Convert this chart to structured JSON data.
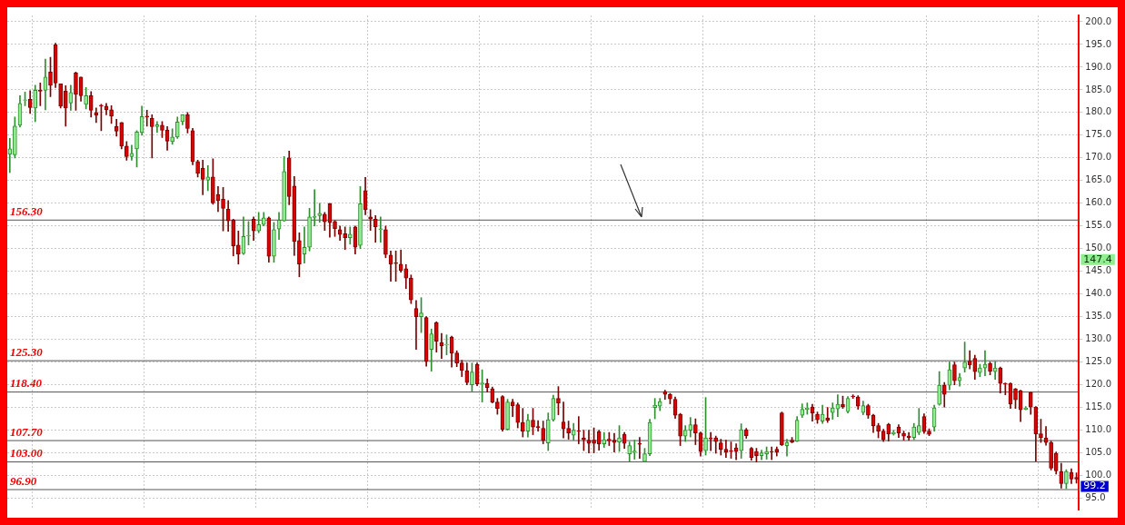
{
  "chart_data": {
    "type": "candlestick",
    "categories": [
      null,
      null,
      null,
      null,
      null,
      null,
      null,
      null,
      null,
      null,
      null,
      null,
      null,
      null,
      null,
      null,
      null,
      null,
      null,
      null,
      null,
      null,
      null,
      null,
      null,
      null,
      null,
      null,
      null,
      null,
      null,
      null,
      null,
      null,
      null,
      null,
      null,
      null,
      null,
      null,
      null,
      null,
      null,
      null,
      null,
      null,
      null,
      null,
      null,
      null,
      null,
      null,
      null,
      null,
      null,
      null,
      null,
      null,
      null,
      null,
      null,
      null,
      null,
      null,
      null,
      null,
      null,
      null,
      null,
      null,
      null,
      null,
      null,
      null,
      null,
      null,
      null,
      null,
      null,
      null,
      null,
      null,
      null,
      null,
      null,
      null,
      null,
      null,
      null,
      null,
      null,
      null,
      null,
      null,
      null,
      null,
      null,
      null,
      null,
      null,
      null,
      null,
      null,
      null,
      null,
      null,
      null,
      null,
      null,
      null,
      null,
      null,
      null,
      null,
      null,
      null,
      null,
      null,
      null,
      null,
      null,
      null,
      null,
      null,
      null,
      null,
      null,
      null,
      null,
      null,
      null,
      null,
      null,
      null,
      null,
      null,
      null,
      null,
      null,
      null,
      null,
      null,
      null,
      null,
      null,
      null,
      null,
      null,
      null,
      null,
      null,
      null,
      null,
      null,
      null,
      null,
      null,
      null,
      null,
      null,
      null,
      null,
      null,
      null,
      null,
      null,
      null,
      null,
      null,
      null,
      null,
      null,
      null,
      null,
      null,
      null,
      null,
      null,
      null,
      null,
      null,
      null,
      null,
      null,
      null,
      null,
      null,
      null,
      null,
      null,
      null,
      null,
      null,
      null,
      null,
      null,
      null,
      null,
      null,
      null,
      null,
      null,
      null,
      null,
      null,
      null,
      null,
      null,
      null,
      null,
      null
    ],
    "ohlc": [
      [
        170.8,
        174.3,
        166.8,
        172
      ],
      [
        170.7,
        179,
        170,
        177
      ],
      [
        177.2,
        183.7,
        176.8,
        182
      ],
      [
        182.7,
        184.5,
        181.5,
        182.8
      ],
      [
        182.9,
        184.8,
        179.8,
        181.1
      ],
      [
        181,
        186,
        178,
        184.9
      ],
      [
        184.9,
        186.5,
        181.5,
        184.7
      ],
      [
        184.9,
        191.8,
        180.6,
        187.8
      ],
      [
        188.9,
        192.2,
        183.5,
        186
      ],
      [
        195,
        195.3,
        185.5,
        186.5
      ],
      [
        186.3,
        186.3,
        181,
        181.4
      ],
      [
        184.7,
        185.9,
        177,
        181
      ],
      [
        182.1,
        186,
        180.5,
        184.4
      ],
      [
        188.7,
        188.9,
        180.5,
        184
      ],
      [
        187.8,
        187.8,
        182.5,
        183.7
      ],
      [
        181.8,
        185.5,
        180.8,
        183.7
      ],
      [
        183.7,
        184.6,
        179,
        180.5
      ],
      [
        180,
        181,
        177.8,
        179.4
      ],
      [
        181.6,
        181.8,
        176,
        181.4
      ],
      [
        181.4,
        182,
        179.5,
        180.6
      ],
      [
        180.6,
        181.5,
        177.6,
        179.2
      ],
      [
        176.9,
        178.5,
        174.8,
        175.9
      ],
      [
        177.8,
        177.8,
        172,
        172.6
      ],
      [
        172.6,
        173.6,
        169.5,
        170.3
      ],
      [
        170.3,
        172.8,
        169.5,
        171
      ],
      [
        172,
        176,
        168,
        175.7
      ],
      [
        175.6,
        181.4,
        175,
        179.1
      ],
      [
        179.2,
        180.5,
        177,
        179
      ],
      [
        178.7,
        179.5,
        170,
        176.9
      ],
      [
        176.9,
        178,
        175.6,
        177.3
      ],
      [
        177.2,
        178,
        174.5,
        176.1
      ],
      [
        176.1,
        176.9,
        171.7,
        173.7
      ],
      [
        173.6,
        176.4,
        173,
        174.6
      ],
      [
        174.6,
        179,
        174.3,
        177.9
      ],
      [
        178,
        179.5,
        177.3,
        179.5
      ],
      [
        179.5,
        180,
        175.5,
        176.5
      ],
      [
        176,
        176.5,
        168.5,
        169.2
      ],
      [
        169.2,
        169.5,
        165.8,
        166.6
      ],
      [
        167.7,
        169.5,
        161.9,
        165.3
      ],
      [
        165.1,
        168.3,
        162.8,
        165.8
      ],
      [
        165.8,
        169.8,
        159.8,
        160.1
      ],
      [
        161.9,
        163.7,
        158.2,
        160.6
      ],
      [
        160.9,
        163.5,
        153.9,
        158.9
      ],
      [
        158.7,
        160.6,
        153.8,
        156.1
      ],
      [
        156.3,
        156.5,
        148.4,
        150.6
      ],
      [
        150.8,
        153.9,
        146.6,
        148.8
      ],
      [
        148.9,
        157,
        148.7,
        152.7
      ],
      [
        152.8,
        156,
        150.8,
        152.9
      ],
      [
        156.5,
        157,
        151.8,
        153.9
      ],
      [
        153.9,
        158,
        153.5,
        155.3
      ],
      [
        155.3,
        158,
        155,
        156.8
      ],
      [
        156.8,
        157,
        147,
        148.3
      ],
      [
        148.3,
        155.8,
        147,
        154.2
      ],
      [
        154.3,
        158,
        152,
        156.3
      ],
      [
        156.1,
        170.3,
        156,
        167
      ],
      [
        170,
        171.5,
        159.7,
        161.5
      ],
      [
        163.8,
        165.9,
        148.5,
        151.6
      ],
      [
        151.8,
        153.5,
        143.8,
        146.6
      ],
      [
        148.8,
        154.8,
        146.8,
        150.3
      ],
      [
        150.3,
        158.9,
        149.5,
        157
      ],
      [
        156.9,
        163,
        155,
        157.1
      ],
      [
        157.3,
        160,
        155.8,
        157.8
      ],
      [
        157.6,
        158,
        154,
        155.9
      ],
      [
        159.9,
        160,
        152.5,
        155.7
      ],
      [
        156,
        156.2,
        152.7,
        154.4
      ],
      [
        154.2,
        155,
        151.8,
        153.1
      ],
      [
        153.3,
        154.8,
        149.8,
        152.4
      ],
      [
        152.4,
        154.8,
        151,
        153.2
      ],
      [
        154.8,
        155,
        148.8,
        150.3
      ],
      [
        150.7,
        163.7,
        150,
        159.9
      ],
      [
        162.8,
        165.7,
        157.5,
        158.6
      ],
      [
        157,
        158.6,
        154,
        156.5
      ],
      [
        156.5,
        157.3,
        151.4,
        154.8
      ],
      [
        154.2,
        157,
        151.4,
        154.4
      ],
      [
        154.2,
        155,
        148,
        148.7
      ],
      [
        148.6,
        149.5,
        142.8,
        146.6
      ],
      [
        146.9,
        149.5,
        142.8,
        146.7
      ],
      [
        146.6,
        149.7,
        144.8,
        145.2
      ],
      [
        145.6,
        146.5,
        141.2,
        143.5
      ],
      [
        143.5,
        144.2,
        137.9,
        138.7
      ],
      [
        136.8,
        138.6,
        127.8,
        135
      ],
      [
        135,
        139.2,
        131.5,
        135.8
      ],
      [
        134.8,
        135,
        124.1,
        125.1
      ],
      [
        127.8,
        132.3,
        123,
        131.2
      ],
      [
        133.7,
        133.9,
        127.2,
        129.6
      ],
      [
        129.3,
        131.3,
        125.8,
        128.6
      ],
      [
        128.8,
        131,
        126.6,
        128.9
      ],
      [
        130.5,
        130.7,
        123.9,
        127
      ],
      [
        127,
        127.5,
        124,
        124.8
      ],
      [
        124.8,
        125.4,
        121.8,
        123.2
      ],
      [
        123.1,
        124.8,
        120,
        120.5
      ],
      [
        120,
        124.8,
        118.6,
        122.8
      ],
      [
        124.5,
        124.8,
        119.8,
        120.2
      ],
      [
        120.2,
        123.3,
        116.2,
        120.4
      ],
      [
        120.3,
        121.3,
        118.4,
        119.4
      ],
      [
        119.1,
        119.5,
        116,
        116.2
      ],
      [
        116.2,
        117,
        113.5,
        114.8
      ],
      [
        117.4,
        117.6,
        109.8,
        110.2
      ],
      [
        110.2,
        116.8,
        110,
        116.2
      ],
      [
        116.2,
        116.8,
        113,
        115.4
      ],
      [
        115.6,
        116,
        110.5,
        111.7
      ],
      [
        111.7,
        114.8,
        108.5,
        109.8
      ],
      [
        109.8,
        113.5,
        108.5,
        112.2
      ],
      [
        112.2,
        114.8,
        109,
        110.7
      ],
      [
        110.8,
        112.1,
        109.8,
        110.6
      ],
      [
        110.4,
        112,
        107,
        107.8
      ],
      [
        107.2,
        113.8,
        105.5,
        112.3
      ],
      [
        112.3,
        117.7,
        112,
        117
      ],
      [
        117,
        119.6,
        113.4,
        116
      ],
      [
        111.8,
        116.2,
        108.3,
        110.3
      ],
      [
        110.4,
        112,
        108,
        109.4
      ],
      [
        108.9,
        111.5,
        107.8,
        110
      ],
      [
        109.9,
        113,
        107,
        109.8
      ],
      [
        108.3,
        110,
        105.5,
        107.9
      ],
      [
        107.8,
        110,
        105,
        107.1
      ],
      [
        107.8,
        110.5,
        105,
        107.1
      ],
      [
        109.7,
        110,
        105.6,
        107
      ],
      [
        107,
        109.5,
        106.2,
        107.9
      ],
      [
        108,
        109.5,
        106.6,
        107.7
      ],
      [
        107.8,
        109.3,
        105.2,
        107.3
      ],
      [
        107.4,
        111,
        105.3,
        108.3
      ],
      [
        109.1,
        109.5,
        106,
        107.1
      ],
      [
        104.8,
        107.4,
        103.1,
        106.6
      ],
      [
        105.1,
        107.8,
        103.6,
        105.4
      ],
      [
        107.1,
        108.4,
        103.8,
        106.9
      ],
      [
        103.1,
        106,
        103,
        104.8
      ],
      [
        104.8,
        112.4,
        104.4,
        111.7
      ],
      [
        115,
        117,
        112.5,
        115.5
      ],
      [
        115.3,
        117,
        114.3,
        116.3
      ],
      [
        118.5,
        118.8,
        116.8,
        117.9
      ],
      [
        117.9,
        118.1,
        115.8,
        116.9
      ],
      [
        116.8,
        117.3,
        112.6,
        113.3
      ],
      [
        113.5,
        113.7,
        106.6,
        108.7
      ],
      [
        108.7,
        111,
        107.5,
        110
      ],
      [
        110,
        112.8,
        108.5,
        111.2
      ],
      [
        111.2,
        112.5,
        106.8,
        109.4
      ],
      [
        109.4,
        109.6,
        104.3,
        105.3
      ],
      [
        105.5,
        117.2,
        104.5,
        108.3
      ],
      [
        108.3,
        109.5,
        105.5,
        108.1
      ],
      [
        108.3,
        108.7,
        104.9,
        107.5
      ],
      [
        107.2,
        108,
        104.5,
        105.8
      ],
      [
        105.8,
        107.8,
        104,
        105.2
      ],
      [
        105.5,
        107.4,
        103.8,
        105.3
      ],
      [
        106.1,
        107,
        103.5,
        105.3
      ],
      [
        105.5,
        111.4,
        103.8,
        110.1
      ],
      [
        110.1,
        110.4,
        108.2,
        108.8
      ],
      [
        106,
        106.2,
        103.4,
        104
      ],
      [
        105.3,
        106,
        103,
        104.4
      ],
      [
        104.4,
        105.6,
        103.5,
        105
      ],
      [
        104.8,
        106.3,
        103.6,
        105.3
      ],
      [
        105.3,
        106.3,
        103.5,
        105.2
      ],
      [
        105.8,
        106.3,
        104.3,
        105.2
      ],
      [
        113.8,
        114,
        106.6,
        106.8
      ],
      [
        106.6,
        108,
        104.3,
        107.3
      ],
      [
        107.8,
        108.4,
        107.2,
        107.4
      ],
      [
        107.6,
        113,
        107.5,
        112.2
      ],
      [
        113.3,
        115.8,
        112.8,
        114.6
      ],
      [
        114.6,
        116,
        113.5,
        114.9
      ],
      [
        115.1,
        115.7,
        112,
        113.8
      ],
      [
        113.5,
        114,
        111.5,
        112.3
      ],
      [
        112,
        115.5,
        111.5,
        113.5
      ],
      [
        112.7,
        115,
        111.7,
        112.2
      ],
      [
        113.9,
        116,
        112.4,
        114.9
      ],
      [
        114.7,
        117.8,
        113,
        115.7
      ],
      [
        115.7,
        117.5,
        114.8,
        115.2
      ],
      [
        114.1,
        117.4,
        113.8,
        117
      ],
      [
        117.5,
        117.8,
        117,
        117.4
      ],
      [
        117.3,
        117.6,
        114.6,
        115.3
      ],
      [
        113.9,
        116.4,
        113.4,
        115.4
      ],
      [
        115.4,
        115.7,
        112.6,
        113.3
      ],
      [
        113.3,
        113.5,
        109.5,
        111
      ],
      [
        111,
        111.5,
        108.3,
        109.8
      ],
      [
        109.8,
        110.2,
        107.5,
        107.9
      ],
      [
        111.3,
        111.5,
        107.6,
        109.2
      ],
      [
        109.2,
        110,
        108.9,
        109.5
      ],
      [
        110.7,
        111.2,
        108.4,
        109.4
      ],
      [
        109.3,
        109.8,
        107.8,
        108.7
      ],
      [
        108.7,
        109.5,
        107.8,
        108.4
      ],
      [
        108.4,
        111.5,
        107.9,
        110.7
      ],
      [
        109.5,
        114.8,
        109,
        111
      ],
      [
        113,
        113.6,
        109.3,
        109.7
      ],
      [
        109.8,
        110.3,
        108.8,
        109.1
      ],
      [
        110.7,
        115.5,
        109.8,
        114.9
      ],
      [
        115.7,
        122.9,
        115.5,
        119.9
      ],
      [
        119.9,
        120.5,
        115.1,
        117.9
      ],
      [
        119.9,
        125,
        118.9,
        123.3
      ],
      [
        124.4,
        125,
        120,
        120.9
      ],
      [
        120.9,
        122.5,
        119.7,
        121.6
      ],
      [
        123.7,
        129.4,
        122.8,
        125
      ],
      [
        125.2,
        127.5,
        123.5,
        124.4
      ],
      [
        125.8,
        126.5,
        121.2,
        122.9
      ],
      [
        122.7,
        124.5,
        121.8,
        123.7
      ],
      [
        123.7,
        127.5,
        122,
        124.5
      ],
      [
        124.7,
        125,
        122.2,
        123
      ],
      [
        122.9,
        125.1,
        121.2,
        123.7
      ],
      [
        123.7,
        123.9,
        118.2,
        120.3
      ],
      [
        120.3,
        120.4,
        117.8,
        120.2
      ],
      [
        120.3,
        120.4,
        114.8,
        115.8
      ],
      [
        119.1,
        119.2,
        114.8,
        116.7
      ],
      [
        118.7,
        118.8,
        111.9,
        114.5
      ],
      [
        114.6,
        115.2,
        114.5,
        114.9
      ],
      [
        118.3,
        118.4,
        113.5,
        115.1
      ],
      [
        115.1,
        115.2,
        103.2,
        109.2
      ],
      [
        109.2,
        112.4,
        107.3,
        108.4
      ],
      [
        108.3,
        110.8,
        106.7,
        107.3
      ],
      [
        107.3,
        107.6,
        101.2,
        101.6
      ],
      [
        104.9,
        105.2,
        100.3,
        101
      ],
      [
        100.9,
        102.7,
        97.2,
        98.2
      ],
      [
        98.2,
        101.3,
        97.1,
        100.9
      ],
      [
        100.7,
        101.5,
        98.2,
        99.2
      ],
      [
        99.6,
        100.6,
        98.3,
        99.2
      ]
    ],
    "ylim": [
      92.5,
      201.4
    ],
    "yticks": [
      {
        "value": 95,
        "label": "95.0"
      },
      {
        "value": 100,
        "label": "100.0"
      },
      {
        "value": 105,
        "label": "105.0"
      },
      {
        "value": 110,
        "label": "110.0"
      },
      {
        "value": 115,
        "label": "115.0"
      },
      {
        "value": 120,
        "label": "120.0"
      },
      {
        "value": 125,
        "label": "125.0"
      },
      {
        "value": 130,
        "label": "130.0"
      },
      {
        "value": 135,
        "label": "135.0"
      },
      {
        "value": 140,
        "label": "140.0"
      },
      {
        "value": 145,
        "label": "145.0"
      },
      {
        "value": 150,
        "label": "150.0"
      },
      {
        "value": 155,
        "label": "155.0"
      },
      {
        "value": 160,
        "label": "160.0"
      },
      {
        "value": 165,
        "label": "165.0"
      },
      {
        "value": 170,
        "label": "170.0"
      },
      {
        "value": 175,
        "label": "175.0"
      },
      {
        "value": 180,
        "label": "180.0"
      },
      {
        "value": 185,
        "label": "185.0"
      },
      {
        "value": 190,
        "label": "190.0"
      },
      {
        "value": 195,
        "label": "195.0"
      },
      {
        "value": 200,
        "label": "200.0"
      }
    ],
    "ref_lines": [
      {
        "axis": "y",
        "value": 156.3,
        "label": "156.30"
      },
      {
        "axis": "y",
        "value": 125.3,
        "label": "125.30"
      },
      {
        "axis": "y",
        "value": 118.4,
        "label": "118.40"
      },
      {
        "axis": "y",
        "value": 107.7,
        "label": "107.70"
      },
      {
        "axis": "y",
        "value": 103.0,
        "label": "103.00"
      },
      {
        "axis": "y",
        "value": 96.9,
        "label": "96.90"
      }
    ],
    "annotations": [
      "147.4",
      "99.2"
    ],
    "grid": true,
    "legend": false,
    "tick_labels": "y"
  }
}
